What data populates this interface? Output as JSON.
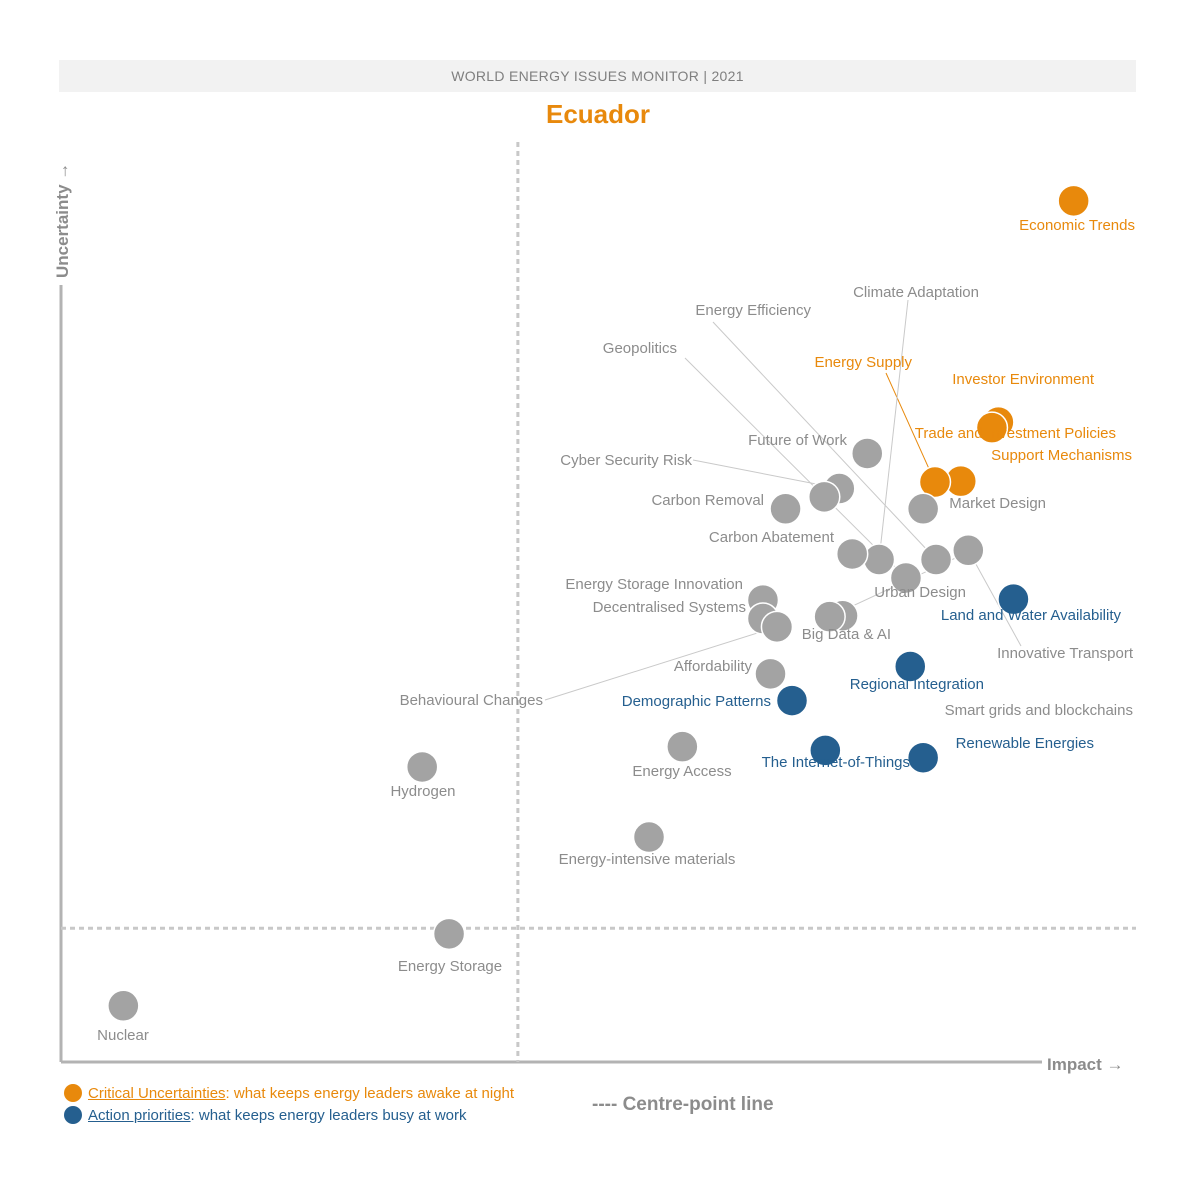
{
  "header": {
    "banner": "WORLD ENERGY ISSUES MONITOR | 2021",
    "country": "Ecuador"
  },
  "colors": {
    "critical": "#e8890c",
    "action": "#255f8f",
    "other": "#a3a3a3",
    "label_other": "#8c8c8c"
  },
  "chart_data": {
    "type": "scatter",
    "title": "Ecuador",
    "xlabel": "Impact",
    "ylabel": "Uncertainty",
    "xlim": [
      0,
      100
    ],
    "ylim": [
      0,
      100
    ],
    "centre_point": {
      "x": 42.5,
      "y": 14.5
    },
    "points": [
      {
        "name": "Economic Trends",
        "x": 94.2,
        "y": 93.4,
        "category": "critical"
      },
      {
        "name": "Investor Environment",
        "x": 87.2,
        "y": 69.4,
        "category": "critical"
      },
      {
        "name": "Trade and Investment Policies",
        "x": 86.6,
        "y": 68.8,
        "category": "critical"
      },
      {
        "name": "Support Mechanisms",
        "x": 83.7,
        "y": 63.0,
        "category": "critical"
      },
      {
        "name": "Energy Supply",
        "x": 81.3,
        "y": 62.9,
        "category": "critical"
      },
      {
        "name": "Land and Water Availability",
        "x": 88.6,
        "y": 50.2,
        "category": "action"
      },
      {
        "name": "Regional Integration",
        "x": 79.0,
        "y": 42.9,
        "category": "action"
      },
      {
        "name": "Renewable Energies",
        "x": 80.2,
        "y": 33.0,
        "category": "action"
      },
      {
        "name": "Demographic Patterns",
        "x": 68.0,
        "y": 39.2,
        "category": "action"
      },
      {
        "name": "The Internet-of-Things",
        "x": 71.1,
        "y": 33.8,
        "category": "action"
      },
      {
        "name": "Climate Adaptation",
        "x": 76.1,
        "y": 54.5,
        "category": "other"
      },
      {
        "name": "Energy Efficiency",
        "x": 81.4,
        "y": 54.5,
        "category": "other"
      },
      {
        "name": "Geopolitics",
        "x": 78.6,
        "y": 52.5,
        "category": "other"
      },
      {
        "name": "Innovative Transport",
        "x": 84.4,
        "y": 55.5,
        "category": "other"
      },
      {
        "name": "Market Design",
        "x": 80.2,
        "y": 60.0,
        "category": "other"
      },
      {
        "name": "Urban Design",
        "x": 73.6,
        "y": 55.1,
        "category": "other"
      },
      {
        "name": "Future of Work",
        "x": 75.0,
        "y": 66.0,
        "category": "other"
      },
      {
        "name": "Cyber Security Risk",
        "x": 72.4,
        "y": 62.2,
        "category": "other"
      },
      {
        "name": "Carbon Removal",
        "x": 71.0,
        "y": 61.3,
        "category": "other"
      },
      {
        "name": "Carbon Abatement",
        "x": 67.4,
        "y": 60.0,
        "category": "other"
      },
      {
        "name": "Energy Storage Innovation",
        "x": 65.3,
        "y": 50.1,
        "category": "other"
      },
      {
        "name": "Decentralised Systems",
        "x": 65.3,
        "y": 48.1,
        "category": "other"
      },
      {
        "name": "Behavioural Changes",
        "x": 66.6,
        "y": 47.2,
        "category": "other"
      },
      {
        "name": "Big Data & AI",
        "x": 72.7,
        "y": 48.4,
        "category": "other"
      },
      {
        "name": "Smart grids and blockchains",
        "x": 71.5,
        "y": 48.3,
        "category": "other"
      },
      {
        "name": "Affordability",
        "x": 66.0,
        "y": 42.1,
        "category": "other"
      },
      {
        "name": "Energy Access",
        "x": 57.8,
        "y": 34.2,
        "category": "other"
      },
      {
        "name": "Hydrogen",
        "x": 33.6,
        "y": 32.0,
        "category": "other"
      },
      {
        "name": "Energy-intensive materials",
        "x": 54.7,
        "y": 24.4,
        "category": "other"
      },
      {
        "name": "Energy Storage",
        "x": 36.1,
        "y": 13.9,
        "category": "other"
      },
      {
        "name": "Nuclear",
        "x": 5.8,
        "y": 6.1,
        "category": "other"
      }
    ]
  },
  "legend": {
    "critical_term": "Critical Uncertainties",
    "critical_desc": ": what keeps energy leaders awake at night",
    "action_term": "Action priorities",
    "action_desc": ": what keeps energy leaders busy at work",
    "centre_line": "---- Centre-point line"
  }
}
